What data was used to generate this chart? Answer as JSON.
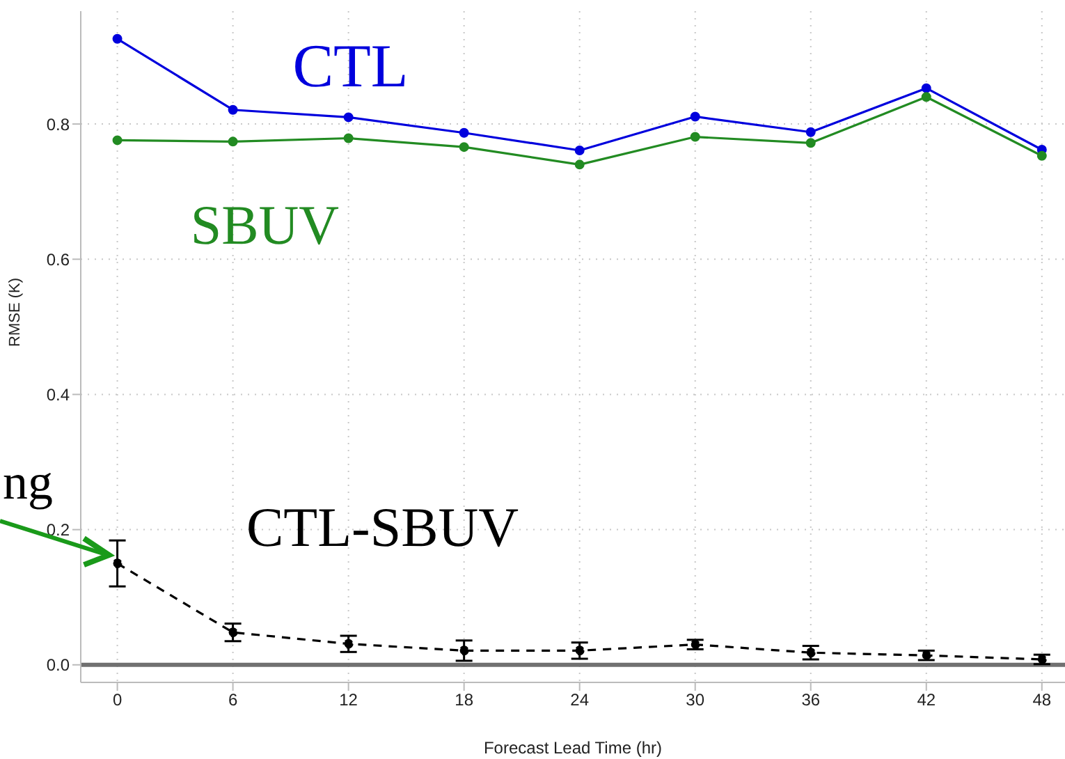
{
  "chart_data": {
    "type": "line",
    "xlabel": "Forecast Lead Time (hr)",
    "ylabel": "RMSE (K)",
    "x": [
      0,
      6,
      12,
      18,
      24,
      30,
      36,
      42,
      48
    ],
    "series": [
      {
        "name": "CTL",
        "color": "#0000dd",
        "values": [
          0.926,
          0.821,
          0.81,
          0.787,
          0.761,
          0.811,
          0.788,
          0.853,
          0.762
        ]
      },
      {
        "name": "SBUV",
        "color": "#228b22",
        "values": [
          0.776,
          0.774,
          0.779,
          0.766,
          0.74,
          0.781,
          0.772,
          0.84,
          0.753
        ]
      },
      {
        "name": "CTL-SBUV",
        "color": "#000000",
        "line_style": "dashed",
        "values": [
          0.15,
          0.048,
          0.031,
          0.021,
          0.021,
          0.03,
          0.018,
          0.014,
          0.008
        ],
        "errors": [
          0.034,
          0.013,
          0.012,
          0.015,
          0.012,
          0.007,
          0.01,
          0.007,
          0.007
        ]
      }
    ],
    "xlim": [
      -1.9,
      49.2
    ],
    "xticks": [
      0,
      6,
      12,
      18,
      24,
      30,
      36,
      42,
      48
    ],
    "ylim": [
      -0.026,
      0.967
    ],
    "yticks": [
      {
        "value": 0,
        "label": "0.0"
      },
      0.2,
      0.4,
      0.6,
      0.8
    ],
    "ref_lines": [
      {
        "axis": "y",
        "value": 0,
        "color": "#707070"
      }
    ],
    "annotations": [
      "ng"
    ],
    "grid": true,
    "marker": "circle",
    "line_style": "solid"
  }
}
